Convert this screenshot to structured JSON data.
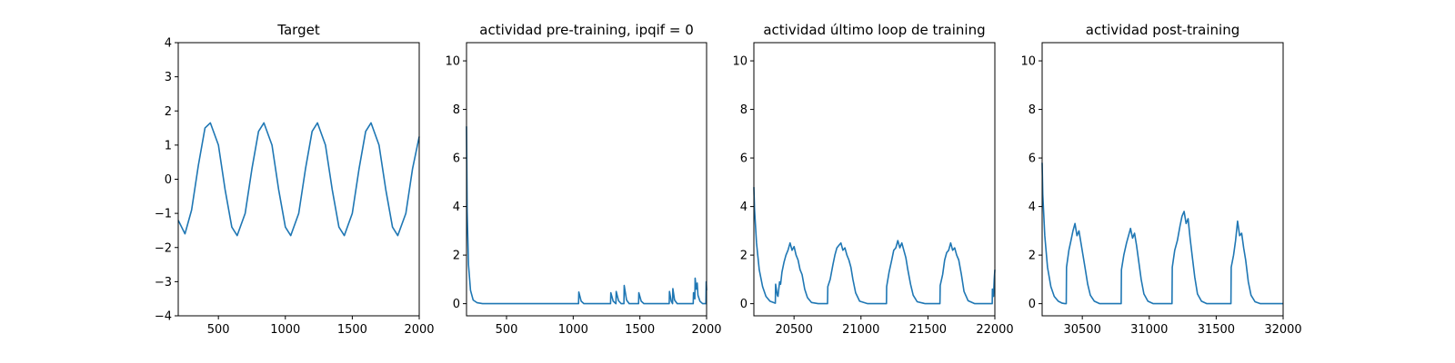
{
  "figure": {
    "background": "#ffffff",
    "line_color": "#1f77b4"
  },
  "chart_data": [
    {
      "type": "line",
      "title": "Target",
      "xlabel": "",
      "ylabel": "",
      "xlim": [
        200,
        2000
      ],
      "ylim": [
        -4,
        4
      ],
      "xticks": [
        500,
        1000,
        1500,
        2000
      ],
      "yticks": [
        -4,
        -3,
        -2,
        -1,
        0,
        1,
        2,
        3,
        4
      ],
      "series": [
        {
          "x": [
            200,
            250,
            300,
            350,
            400,
            440,
            500,
            550,
            600,
            640,
            700,
            750,
            800,
            840,
            900,
            950,
            1000,
            1040,
            1100,
            1150,
            1200,
            1240,
            1300,
            1350,
            1400,
            1440,
            1500,
            1550,
            1600,
            1640,
            1700,
            1750,
            1800,
            1840,
            1900,
            1950,
            2000
          ],
          "y": [
            -1.2,
            -1.6,
            -0.9,
            0.4,
            1.5,
            1.65,
            1.0,
            -0.3,
            -1.4,
            -1.65,
            -1.0,
            0.3,
            1.4,
            1.65,
            1.0,
            -0.3,
            -1.4,
            -1.65,
            -1.0,
            0.3,
            1.4,
            1.65,
            1.0,
            -0.3,
            -1.4,
            -1.65,
            -1.0,
            0.3,
            1.4,
            1.65,
            1.0,
            -0.3,
            -1.4,
            -1.65,
            -1.0,
            0.3,
            1.25
          ]
        }
      ]
    },
    {
      "type": "line",
      "title": "actividad pre-training, ipqif = 0",
      "xlabel": "",
      "ylabel": "",
      "xlim": [
        200,
        2000
      ],
      "ylim": [
        -0.5,
        10.75
      ],
      "xticks": [
        500,
        1000,
        1500,
        2000
      ],
      "yticks": [
        0,
        2,
        4,
        6,
        8,
        10
      ],
      "series": [
        {
          "x": [
            200,
            205,
            215,
            230,
            250,
            280,
            320,
            1040,
            1042,
            1060,
            1080,
            1280,
            1282,
            1300,
            1320,
            1322,
            1340,
            1360,
            1380,
            1382,
            1400,
            1420,
            1490,
            1492,
            1510,
            1530,
            1720,
            1722,
            1735,
            1745,
            1747,
            1760,
            1780,
            1900,
            1902,
            1912,
            1914,
            1922,
            1930,
            1935,
            1950,
            1970,
            1985,
            1995,
            1997,
            2000
          ],
          "y": [
            7.3,
            3.8,
            1.6,
            0.55,
            0.15,
            0.04,
            0.0,
            0.0,
            0.48,
            0.1,
            0.0,
            0.0,
            0.45,
            0.1,
            0.0,
            0.5,
            0.12,
            0.0,
            0.0,
            0.75,
            0.15,
            0.0,
            0.0,
            0.45,
            0.1,
            0.0,
            0.0,
            0.5,
            0.1,
            0.0,
            0.62,
            0.15,
            0.0,
            0.0,
            0.45,
            0.2,
            1.05,
            0.6,
            0.85,
            0.35,
            0.1,
            0.0,
            0.0,
            0.0,
            0.9,
            0.55
          ]
        }
      ]
    },
    {
      "type": "line",
      "title": "actividad último loop de training",
      "xlabel": "",
      "ylabel": "",
      "xlim": [
        20200,
        22000
      ],
      "ylim": [
        -0.5,
        10.75
      ],
      "xticks": [
        20500,
        21000,
        21500,
        22000
      ],
      "yticks": [
        0,
        2,
        4,
        6,
        8,
        10
      ],
      "series": [
        {
          "x": [
            20200,
            20205,
            20220,
            20240,
            20265,
            20290,
            20320,
            20360,
            20362,
            20375,
            20380,
            20392,
            20400,
            20410,
            20425,
            20440,
            20455,
            20470,
            20485,
            20500,
            20515,
            20530,
            20545,
            20560,
            20580,
            20600,
            20630,
            20680,
            20750,
            20752,
            20770,
            20790,
            20805,
            20820,
            20835,
            20850,
            20865,
            20880,
            20895,
            20910,
            20925,
            20940,
            20960,
            20990,
            21050,
            21190,
            21192,
            21210,
            21230,
            21245,
            21260,
            21275,
            21290,
            21305,
            21320,
            21335,
            21350,
            21370,
            21390,
            21420,
            21480,
            21590,
            21592,
            21610,
            21625,
            21640,
            21655,
            21670,
            21685,
            21700,
            21715,
            21730,
            21750,
            21770,
            21800,
            21850,
            21900,
            21930,
            21980,
            21982,
            21990,
            21995,
            22000
          ],
          "y": [
            4.8,
            3.9,
            2.5,
            1.4,
            0.7,
            0.3,
            0.1,
            0.02,
            0.8,
            0.35,
            0.3,
            0.9,
            0.8,
            1.3,
            1.7,
            2.0,
            2.2,
            2.5,
            2.2,
            2.35,
            2.0,
            1.8,
            1.4,
            1.2,
            0.6,
            0.25,
            0.05,
            0.0,
            0.0,
            0.7,
            1.0,
            1.6,
            2.0,
            2.3,
            2.4,
            2.5,
            2.2,
            2.3,
            2.0,
            1.8,
            1.5,
            1.0,
            0.45,
            0.1,
            0.0,
            0.0,
            0.7,
            1.3,
            1.8,
            2.2,
            2.3,
            2.6,
            2.3,
            2.5,
            2.2,
            1.9,
            1.4,
            0.8,
            0.35,
            0.08,
            0.0,
            0.0,
            0.75,
            1.2,
            1.8,
            2.1,
            2.2,
            2.5,
            2.2,
            2.3,
            2.0,
            1.8,
            1.2,
            0.5,
            0.12,
            0.0,
            0.0,
            0.0,
            0.0,
            0.6,
            0.3,
            1.0,
            1.4
          ]
        }
      ]
    },
    {
      "type": "line",
      "title": "actividad post-training",
      "xlabel": "",
      "ylabel": "",
      "xlim": [
        30200,
        32000
      ],
      "ylim": [
        -0.5,
        10.75
      ],
      "xticks": [
        30500,
        31000,
        31500,
        32000
      ],
      "yticks": [
        0,
        2,
        4,
        6,
        8,
        10
      ],
      "series": [
        {
          "x": [
            30200,
            30205,
            30220,
            30240,
            30265,
            30290,
            30320,
            30350,
            30370,
            30380,
            30382,
            30400,
            30415,
            30430,
            30445,
            30460,
            30475,
            30490,
            30505,
            30520,
            30540,
            30560,
            30590,
            30630,
            30700,
            30790,
            30792,
            30810,
            30830,
            30845,
            30860,
            30875,
            30890,
            30905,
            30920,
            30940,
            30960,
            30990,
            31030,
            31100,
            31170,
            31172,
            31190,
            31210,
            31230,
            31245,
            31260,
            31275,
            31290,
            31305,
            31320,
            31340,
            31360,
            31390,
            31430,
            31500,
            31610,
            31612,
            31630,
            31645,
            31660,
            31675,
            31690,
            31705,
            31720,
            31740,
            31760,
            31790,
            31830,
            31900,
            32000
          ],
          "y": [
            5.8,
            4.5,
            2.8,
            1.5,
            0.7,
            0.3,
            0.1,
            0.02,
            0.0,
            0.0,
            1.5,
            2.2,
            2.6,
            3.0,
            3.3,
            2.8,
            3.0,
            2.5,
            2.0,
            1.5,
            0.8,
            0.35,
            0.1,
            0.0,
            0.0,
            0.0,
            1.4,
            2.0,
            2.5,
            2.8,
            3.1,
            2.7,
            2.9,
            2.4,
            1.8,
            1.0,
            0.4,
            0.1,
            0.0,
            0.0,
            0.0,
            1.5,
            2.2,
            2.6,
            3.2,
            3.6,
            3.8,
            3.3,
            3.5,
            2.7,
            2.0,
            1.1,
            0.4,
            0.1,
            0.0,
            0.0,
            0.0,
            1.5,
            2.0,
            2.6,
            3.4,
            2.8,
            2.9,
            2.3,
            1.8,
            0.9,
            0.35,
            0.08,
            0.0,
            0.0,
            0.0
          ]
        }
      ]
    }
  ]
}
